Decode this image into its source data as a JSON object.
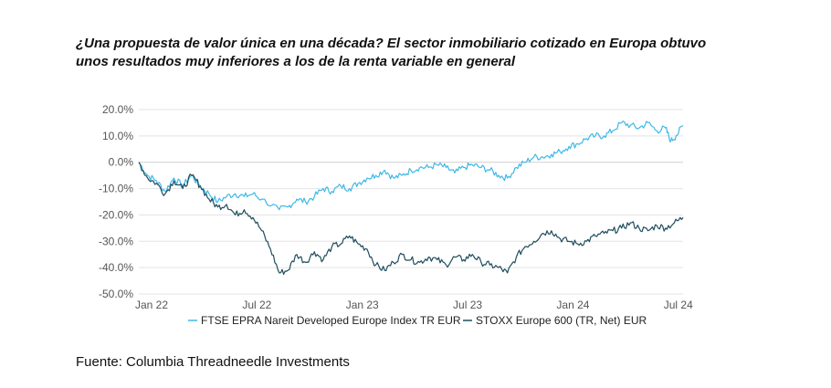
{
  "title_lines": [
    "¿Una propuesta de valor única en una década? El sector inmobiliario cotizado en Europa obtuvo",
    "unos resultados muy inferiores a los de la renta variable en general"
  ],
  "source": "Fuente: Columbia Threadneedle Investments",
  "colors": {
    "series1": "#3fb8e6",
    "series2": "#1e4d5e",
    "grid": "#e3e3e3",
    "zero": "#cfcfcf"
  },
  "chart_data": {
    "type": "line",
    "title": "¿Una propuesta de valor única en una década? El sector inmobiliario cotizado en Europa obtuvo unos resultados muy inferiores a los de la renta variable en general",
    "xlabel": "",
    "ylabel": "",
    "xlim": [
      0,
      31
    ],
    "ylim": [
      -50,
      20
    ],
    "x_unit": "months since Jan 22",
    "yticks": [
      20,
      10,
      0,
      -10,
      -20,
      -30,
      -40,
      -50
    ],
    "ytick_labels": [
      "20.0%",
      "10.0%",
      "0.0%",
      "-10.0%",
      "-20.0%",
      "-30.0%",
      "-40.0%",
      "-50.0%"
    ],
    "xticks": [
      0,
      6,
      12,
      18,
      24,
      30
    ],
    "xtick_labels": [
      "Jan 22",
      "Jul 22",
      "Jan 23",
      "Jul 23",
      "Jan 24",
      "Jul 24"
    ],
    "grid": true,
    "legend_position": "bottom",
    "series": [
      {
        "name": "FTSE EPRA Nareit Developed Europe Index TR EUR",
        "color": "#3fb8e6",
        "points": [
          [
            0,
            0
          ],
          [
            0.5,
            -5
          ],
          [
            1,
            -7
          ],
          [
            1.5,
            -11
          ],
          [
            2,
            -6
          ],
          [
            2.5,
            -9
          ],
          [
            3,
            -5
          ],
          [
            3.5,
            -9
          ],
          [
            4,
            -12
          ],
          [
            4.5,
            -15
          ],
          [
            5,
            -13
          ],
          [
            5.5,
            -12
          ],
          [
            6,
            -13
          ],
          [
            6.5,
            -12
          ],
          [
            7,
            -14
          ],
          [
            8,
            -18
          ],
          [
            8.5,
            -17
          ],
          [
            9,
            -14
          ],
          [
            9.5,
            -15
          ],
          [
            10,
            -13
          ],
          [
            10.5,
            -10
          ],
          [
            11,
            -11
          ],
          [
            11.5,
            -9
          ],
          [
            12,
            -10
          ],
          [
            12.5,
            -8
          ],
          [
            13,
            -6
          ],
          [
            13.5,
            -5
          ],
          [
            14,
            -3
          ],
          [
            14.5,
            -6
          ],
          [
            15,
            -5
          ],
          [
            15.5,
            -3
          ],
          [
            16,
            -2
          ],
          [
            16.5,
            -2
          ],
          [
            17,
            -1
          ],
          [
            17.5,
            -2
          ],
          [
            18,
            -4
          ],
          [
            18.5,
            -2
          ],
          [
            19,
            -1
          ],
          [
            19.5,
            -2
          ],
          [
            20,
            -3
          ],
          [
            20.5,
            -5
          ],
          [
            21,
            -6
          ],
          [
            21.5,
            -2
          ],
          [
            22,
            0
          ],
          [
            22.5,
            2
          ],
          [
            23,
            2
          ],
          [
            23.5,
            3
          ],
          [
            24,
            4
          ],
          [
            24.5,
            6
          ],
          [
            25,
            7
          ],
          [
            25.5,
            9
          ],
          [
            26,
            10
          ],
          [
            26.5,
            10
          ],
          [
            27,
            12
          ],
          [
            27.5,
            15
          ],
          [
            28,
            14
          ],
          [
            28.5,
            13
          ],
          [
            29,
            15
          ],
          [
            29.5,
            12
          ],
          [
            30,
            13
          ],
          [
            30.3,
            8
          ],
          [
            30.6,
            10
          ],
          [
            31,
            14
          ]
        ]
      },
      {
        "name": "STOXX Europe 600 (TR, Net) EUR",
        "color": "#1e4d5e",
        "points": [
          [
            0,
            0
          ],
          [
            0.5,
            -6
          ],
          [
            1,
            -8
          ],
          [
            1.5,
            -12
          ],
          [
            2,
            -7
          ],
          [
            2.5,
            -10
          ],
          [
            3,
            -5
          ],
          [
            3.5,
            -9
          ],
          [
            4,
            -14
          ],
          [
            4.5,
            -17
          ],
          [
            5,
            -16
          ],
          [
            5.5,
            -20
          ],
          [
            6,
            -18
          ],
          [
            6.5,
            -21
          ],
          [
            7,
            -26
          ],
          [
            7.5,
            -33
          ],
          [
            8,
            -42
          ],
          [
            8.5,
            -41
          ],
          [
            9,
            -35
          ],
          [
            9.5,
            -38
          ],
          [
            10,
            -34
          ],
          [
            10.5,
            -37
          ],
          [
            11,
            -32
          ],
          [
            11.5,
            -31
          ],
          [
            12,
            -28
          ],
          [
            12.5,
            -31
          ],
          [
            13,
            -33
          ],
          [
            13.5,
            -39
          ],
          [
            14,
            -41
          ],
          [
            14.5,
            -38
          ],
          [
            15,
            -35
          ],
          [
            15.5,
            -37
          ],
          [
            16,
            -38
          ],
          [
            16.5,
            -36
          ],
          [
            17,
            -37
          ],
          [
            17.5,
            -39
          ],
          [
            18,
            -36
          ],
          [
            18.5,
            -37
          ],
          [
            19,
            -35
          ],
          [
            19.5,
            -38
          ],
          [
            20,
            -39
          ],
          [
            20.5,
            -40
          ],
          [
            21,
            -42
          ],
          [
            21.5,
            -36
          ],
          [
            22,
            -32
          ],
          [
            22.5,
            -30
          ],
          [
            23,
            -27
          ],
          [
            23.5,
            -26
          ],
          [
            24,
            -29
          ],
          [
            24.5,
            -30
          ],
          [
            25,
            -31
          ],
          [
            25.5,
            -30
          ],
          [
            26,
            -28
          ],
          [
            26.5,
            -27
          ],
          [
            27,
            -26
          ],
          [
            27.5,
            -25
          ],
          [
            28,
            -23
          ],
          [
            28.5,
            -25
          ],
          [
            29,
            -26
          ],
          [
            29.5,
            -24
          ],
          [
            30,
            -25
          ],
          [
            30.5,
            -23
          ],
          [
            31,
            -21
          ]
        ]
      }
    ]
  }
}
